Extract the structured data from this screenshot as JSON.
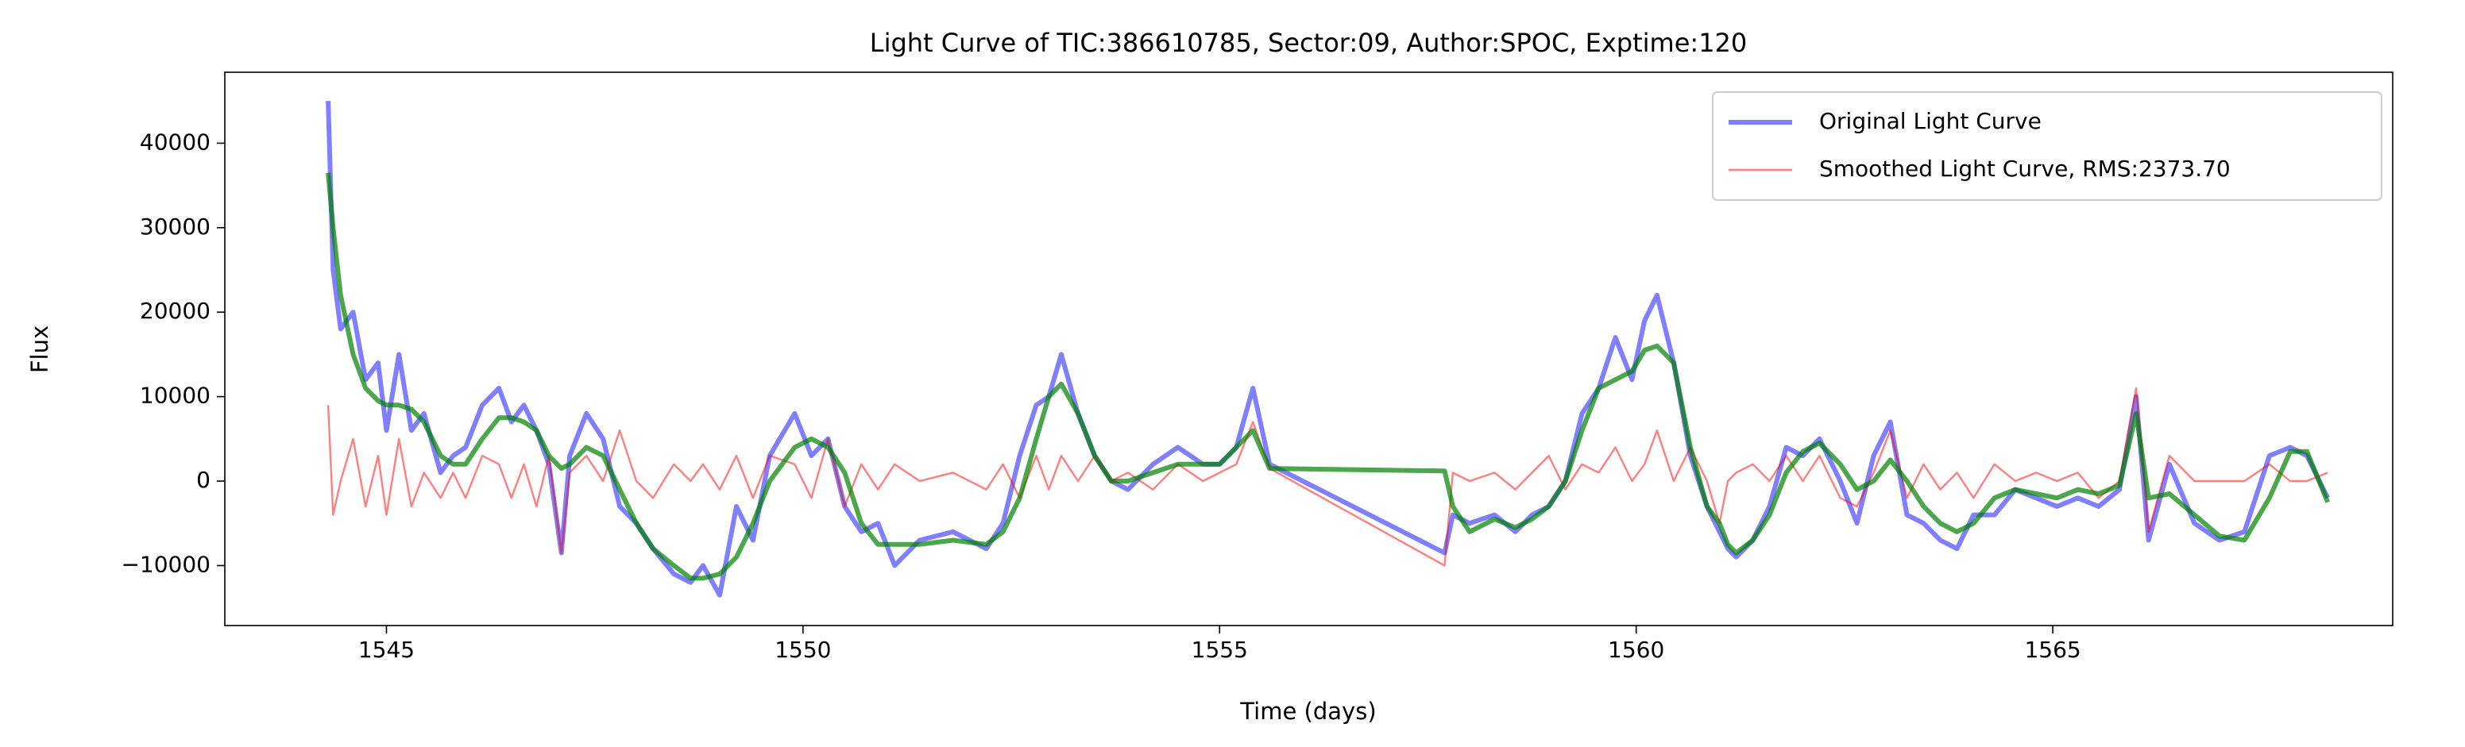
{
  "chart_data": {
    "type": "line",
    "title": "Light Curve of TIC:386610785, Sector:09, Author:SPOC, Exptime:120",
    "xlabel": "Time (days)",
    "ylabel": "Flux",
    "xlim": [
      1543.06,
      1569.08
    ],
    "ylim": [
      -17100,
      48400
    ],
    "xticks": [
      1545,
      1550,
      1555,
      1560,
      1565
    ],
    "yticks": [
      {
        "value": -10000,
        "label": "−10000"
      },
      0,
      10000,
      20000,
      30000,
      40000
    ],
    "legend": "upper right",
    "grid": false,
    "x": [
      1544.3,
      1544.36,
      1544.45,
      1544.6,
      1544.75,
      1544.9,
      1545.0,
      1545.15,
      1545.3,
      1545.45,
      1545.65,
      1545.8,
      1545.95,
      1546.15,
      1546.35,
      1546.5,
      1546.65,
      1546.8,
      1546.95,
      1547.1,
      1547.2,
      1547.4,
      1547.6,
      1547.8,
      1548.0,
      1548.2,
      1548.45,
      1548.65,
      1548.8,
      1549.0,
      1549.2,
      1549.4,
      1549.6,
      1549.9,
      1550.1,
      1550.3,
      1550.5,
      1550.7,
      1550.9,
      1551.1,
      1551.4,
      1551.8,
      1552.2,
      1552.4,
      1552.6,
      1552.8,
      1552.95,
      1553.1,
      1553.3,
      1553.5,
      1553.7,
      1553.9,
      1554.2,
      1554.5,
      1554.8,
      1555.0,
      1555.2,
      1555.4,
      1555.6,
      1557.7,
      1557.8,
      1558.0,
      1558.3,
      1558.55,
      1558.75,
      1558.95,
      1559.15,
      1559.35,
      1559.55,
      1559.75,
      1559.95,
      1560.1,
      1560.25,
      1560.45,
      1560.65,
      1560.85,
      1561.0,
      1561.1,
      1561.2,
      1561.4,
      1561.6,
      1561.8,
      1562.0,
      1562.2,
      1562.45,
      1562.65,
      1562.85,
      1563.05,
      1563.25,
      1563.45,
      1563.65,
      1563.85,
      1564.05,
      1564.3,
      1564.55,
      1564.8,
      1565.05,
      1565.3,
      1565.55,
      1565.8,
      1566.0,
      1566.15,
      1566.4,
      1566.7,
      1567.0,
      1567.3,
      1567.6,
      1567.85,
      1568.05,
      1568.3
    ],
    "series": [
      {
        "name": "Original Light Curve",
        "color": "rgba(0,0,255,0.5)",
        "width": 6,
        "values": [
          45000,
          25000,
          18000,
          20000,
          12000,
          14000,
          6000,
          15000,
          6000,
          8000,
          1000,
          3000,
          4000,
          9000,
          11000,
          7000,
          9000,
          6000,
          2000,
          -8500,
          3000,
          8000,
          5000,
          -3000,
          -5000,
          -8000,
          -11000,
          -12000,
          -10000,
          -13500,
          -3000,
          -7000,
          3000,
          8000,
          3000,
          5000,
          -3000,
          -6000,
          -5000,
          -10000,
          -7000,
          -6000,
          -8000,
          -5000,
          3000,
          9000,
          10000,
          15000,
          8000,
          3000,
          0,
          -1000,
          2000,
          4000,
          2000,
          2000,
          4000,
          11000,
          2000,
          -8500,
          -4000,
          -5000,
          -4000,
          -6000,
          -4000,
          -3000,
          0,
          8000,
          11000,
          17000,
          12000,
          19000,
          22000,
          14000,
          3000,
          -3000,
          -6000,
          -8000,
          -9000,
          -7000,
          -3000,
          4000,
          3000,
          5000,
          0,
          -5000,
          3000,
          7000,
          -4000,
          -5000,
          -7000,
          -8000,
          -4000,
          -4000,
          -1000,
          -2000,
          -3000,
          -2000,
          -3000,
          -1000,
          10000,
          -7000,
          2000,
          -5000,
          -7000,
          -6000,
          3000,
          4000,
          3000,
          -2000
        ]
      },
      {
        "name": "Smoothed Light Curve, RMS:2373.70",
        "color": "rgba(255,0,0,0.5)",
        "width": 2.4,
        "values": [
          9000,
          -4000,
          0,
          5000,
          -3000,
          3000,
          -4000,
          5000,
          -3000,
          1000,
          -2000,
          1000,
          -2000,
          3000,
          2000,
          -2000,
          2000,
          -3000,
          3000,
          -8500,
          1000,
          3000,
          0,
          6000,
          0,
          -2000,
          2000,
          0,
          2000,
          -1000,
          3000,
          -2000,
          3000,
          2000,
          -2000,
          5000,
          -3000,
          2000,
          -1000,
          2000,
          0,
          1000,
          -1000,
          2000,
          -2000,
          3000,
          -1000,
          3000,
          0,
          3000,
          0,
          1000,
          -1000,
          2000,
          0,
          1000,
          2000,
          7000,
          1500,
          -10000,
          1000,
          0,
          1000,
          -1000,
          1000,
          3000,
          -1000,
          2000,
          1000,
          4000,
          0,
          2000,
          6000,
          0,
          4000,
          0,
          -5000,
          0,
          1000,
          2000,
          0,
          3000,
          0,
          3000,
          -2000,
          -3000,
          1000,
          6000,
          -2000,
          2000,
          -1000,
          1000,
          -2000,
          2000,
          0,
          1000,
          0,
          1000,
          -2000,
          0,
          11000,
          -6000,
          3000,
          0,
          0,
          0,
          2000,
          0,
          0,
          1000
        ]
      },
      {
        "color": "rgba(0,128,0,0.7)",
        "width": 6,
        "values": [
          36500,
          30000,
          22000,
          15000,
          11000,
          9500,
          9000,
          9000,
          8500,
          7000,
          3000,
          2000,
          2000,
          5000,
          7500,
          7500,
          7000,
          6000,
          3000,
          1500,
          2000,
          4000,
          3000,
          -1000,
          -5000,
          -8000,
          -10000,
          -11500,
          -11500,
          -11000,
          -9000,
          -5000,
          0,
          4000,
          5000,
          4000,
          1000,
          -5000,
          -7500,
          -7500,
          -7500,
          -7000,
          -7500,
          -6000,
          -2000,
          5000,
          10000,
          11500,
          8000,
          3000,
          0,
          0,
          1000,
          2000,
          2000,
          2000,
          4000,
          6000,
          1500,
          1200,
          -3000,
          -6000,
          -4500,
          -5500,
          -4500,
          -3000,
          0,
          6000,
          11000,
          12000,
          13000,
          15500,
          16000,
          14000,
          4000,
          -3000,
          -5000,
          -7500,
          -8500,
          -7000,
          -4000,
          1000,
          3500,
          4500,
          2000,
          -1000,
          0,
          2500,
          0,
          -3000,
          -5000,
          -6000,
          -5000,
          -2000,
          -1000,
          -1500,
          -2000,
          -1000,
          -1500,
          -500,
          8000,
          -2000,
          -1500,
          -4000,
          -6500,
          -7000,
          -2000,
          3500,
          3500,
          -2500
        ]
      }
    ]
  }
}
